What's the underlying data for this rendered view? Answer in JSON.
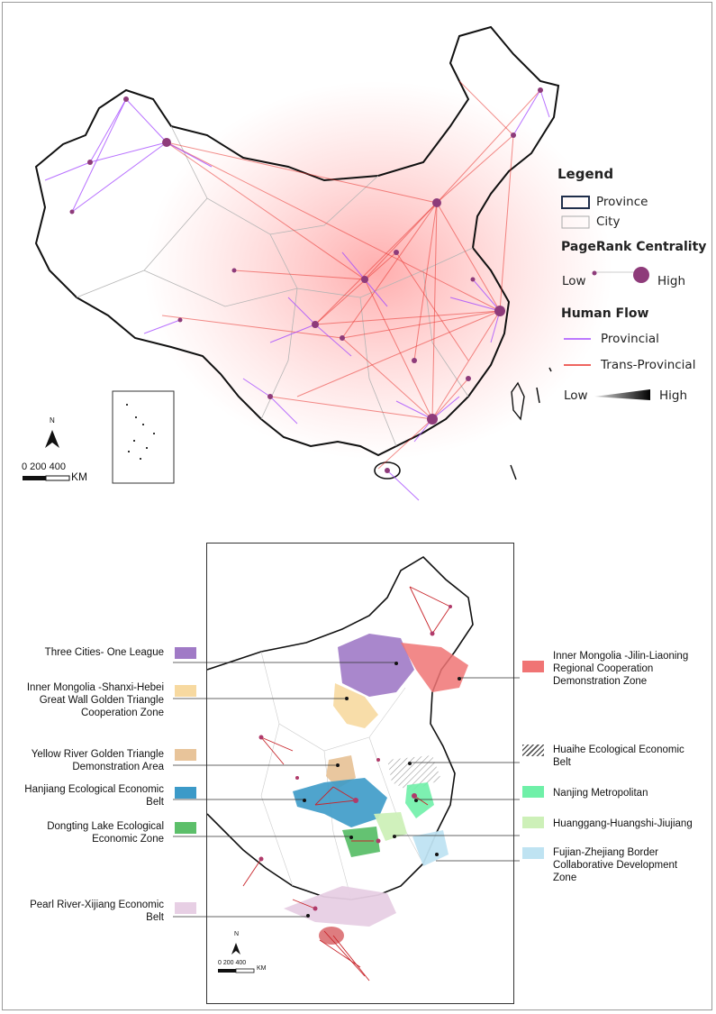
{
  "legend": {
    "title": "Legend",
    "province": "Province",
    "city": "City",
    "pagerank_title": "PageRank Centrality",
    "pagerank_low": "Low",
    "pagerank_high": "High",
    "flow_title": "Human Flow",
    "provincial": "Provincial",
    "trans_provincial": "Trans-Provincial",
    "flow_low": "Low",
    "flow_high": "High",
    "colors": {
      "provincial": "#a64dff",
      "trans_provincial": "#e8322b",
      "node": "#8e3b7a"
    }
  },
  "scalebar_top": {
    "north": "N",
    "ticks": "0 200 400",
    "unit": "KM"
  },
  "scalebar_bottom": {
    "north": "N",
    "ticks": "0   200   400",
    "unit": "KM"
  },
  "zones_left": [
    {
      "label": "Three Cities- One League",
      "color": "#a07ac6"
    },
    {
      "label": "Inner Mongolia -Shanxi-Hebei Great Wall Golden Triangle Cooperation Zone",
      "color": "#f7d9a0"
    },
    {
      "label": "Yellow River Golden Triangle Demonstration Area",
      "color": "#e8c49a"
    },
    {
      "label": "Hanjiang Ecological Economic Belt",
      "color": "#3c9ac8"
    },
    {
      "label": "Dongting Lake Ecological Economic Zone",
      "color": "#5cbf6a"
    },
    {
      "label": "Pearl River-Xijiang Economic Belt",
      "color": "#e7cfe4"
    }
  ],
  "zones_right": [
    {
      "label": "Inner Mongolia -Jilin-Liaoning Regional Cooperation Demonstration Zone",
      "color": "#f07474"
    },
    {
      "label": "Huaihe Ecological Economic Belt",
      "color": "hatch"
    },
    {
      "label": "Nanjing Metropolitan",
      "color": "#6ff0a8"
    },
    {
      "label": "Huanggang-Huangshi-Jiujiang",
      "color": "#cdf0b8"
    },
    {
      "label": "Fujian-Zhejiang Border Collaborative Development Zone",
      "color": "#bfe3f2"
    }
  ]
}
